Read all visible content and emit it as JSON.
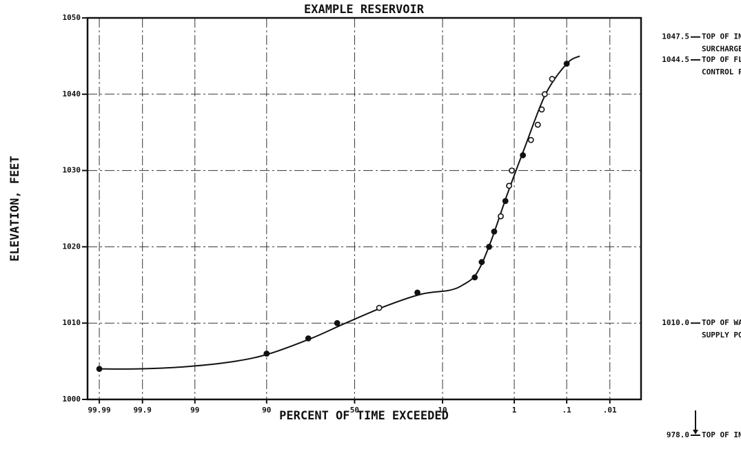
{
  "chart_data": {
    "type": "scatter",
    "title": "EXAMPLE RESERVOIR",
    "x_label": "PERCENT OF TIME EXCEEDED",
    "y_label": "ELEVATION, FEET",
    "xscale": "probability",
    "xlim": [
      99.995,
      0.0015
    ],
    "xticks": [
      99.99,
      99.9,
      99,
      90,
      50,
      10,
      1,
      {
        "value": 0.1,
        "label": ".1"
      },
      {
        "value": 0.01,
        "label": ".01"
      }
    ],
    "ylim": [
      1000,
      1050
    ],
    "yticks": [
      1000,
      1010,
      1020,
      1030,
      1040,
      1050
    ],
    "grid": true,
    "color": "#111111",
    "curve": {
      "x": [
        99.99,
        99.92,
        99.27,
        95.9,
        89.2,
        73.6,
        55.2,
        31.8,
        16.5,
        8.4,
        5.75,
        3.78,
        2.4,
        1.29,
        0.66,
        0.27,
        0.1,
        0.052
      ],
      "values": [
        1004,
        1004,
        1004.3,
        1005,
        1006,
        1008,
        1010,
        1012.3,
        1013.8,
        1014.3,
        1015,
        1016.5,
        1020.5,
        1027,
        1033,
        1040,
        1044,
        1045
      ]
    },
    "series": [
      {
        "marker": "filled",
        "x": [
          99.99,
          90,
          75,
          60,
          18,
          4,
          3.2,
          2.5,
          2.1,
          1.4,
          0.71,
          0.1
        ],
        "values": [
          1004,
          1006,
          1008,
          1010,
          1014,
          1016,
          1018,
          1020,
          1022,
          1026,
          1032,
          1044
        ]
      },
      {
        "marker": "open",
        "x": [
          36,
          1.66,
          1.22,
          1.1,
          0.51,
          0.38,
          0.32,
          0.28,
          0.2
        ],
        "values": [
          1012,
          1024,
          1028,
          1030,
          1034,
          1036,
          1038,
          1040,
          1042
        ]
      }
    ],
    "annotations": [
      {
        "value": 1047.5,
        "label": "1047.5",
        "text": [
          "TOP OF INDUCED",
          "SURCHARGE"
        ]
      },
      {
        "value": 1044.5,
        "label": "1044.5",
        "text": [
          "TOP OF FLOOD",
          "CONTROL POOL"
        ]
      },
      {
        "value": 1010,
        "label": "1010.0",
        "text": [
          "TOP OF WATER",
          "SUPPLY POOL"
        ]
      }
    ],
    "below_axis": {
      "value": 978,
      "label": "978.0",
      "text": [
        "TOP OF INACTIVE"
      ]
    }
  }
}
